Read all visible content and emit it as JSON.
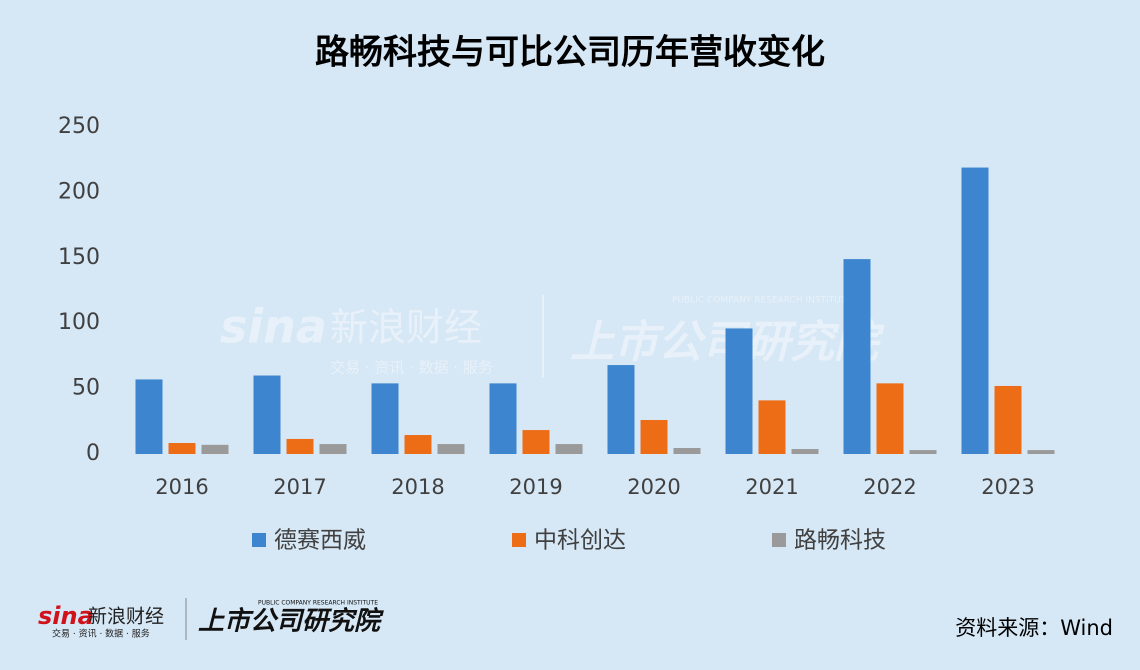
{
  "chart_data": {
    "type": "bar",
    "title": "路畅科技与可比公司历年营收变化",
    "categories": [
      "2016",
      "2017",
      "2018",
      "2019",
      "2020",
      "2021",
      "2022",
      "2023"
    ],
    "series": [
      {
        "name": "德赛西威",
        "color": "#3d86cf",
        "values": [
          57,
          60,
          54,
          54,
          68,
          96,
          149,
          219
        ]
      },
      {
        "name": "中科创达",
        "color": "#ed6d16",
        "values": [
          8.4,
          11.5,
          14.5,
          18.3,
          26,
          41,
          54,
          52
        ]
      },
      {
        "name": "路畅科技",
        "color": "#9a9a9a",
        "values": [
          7,
          7.6,
          7.6,
          7.6,
          4.6,
          3.8,
          3,
          3
        ]
      }
    ],
    "ylim": [
      0,
      250
    ],
    "yticks": [
      0,
      50,
      100,
      150,
      200,
      250
    ],
    "grid": false,
    "source": "资料来源：Wind"
  },
  "branding": {
    "sina": "sina",
    "name": "新浪财经",
    "slogan": "交易 · 资讯 · 数据 · 服务",
    "institute": "上市公司研究院",
    "institute_en": "PUBLIC COMPANY RESEARCH INSTITUTE"
  }
}
